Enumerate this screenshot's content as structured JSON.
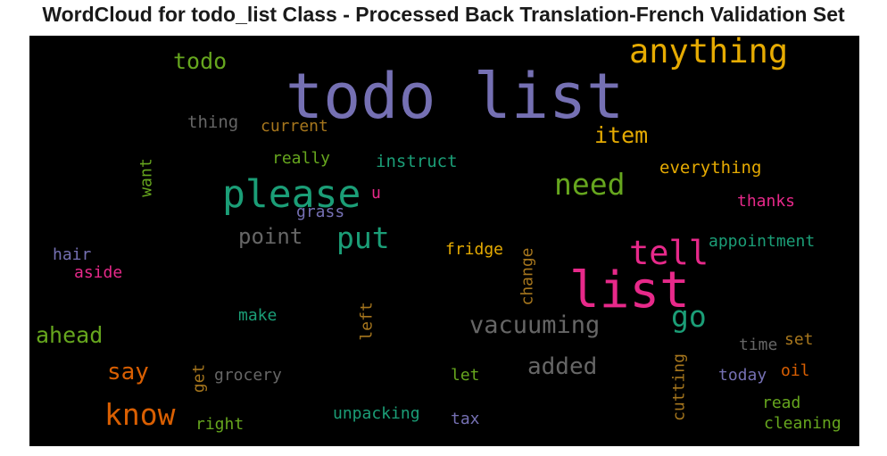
{
  "chart_data": {
    "type": "wordcloud",
    "title": "WordCloud for todo_list Class - Processed Back Translation-French Validation Set",
    "background": "#000000",
    "words": [
      {
        "text": "todo list",
        "color": "#7570b3"
      },
      {
        "text": "list",
        "color": "#e7298a"
      },
      {
        "text": "anything",
        "color": "#e6ab02"
      },
      {
        "text": "please",
        "color": "#1b9e77"
      },
      {
        "text": "know",
        "color": "#d95f02"
      },
      {
        "text": "need",
        "color": "#66a61e"
      },
      {
        "text": "tell",
        "color": "#e7298a"
      },
      {
        "text": "put",
        "color": "#1b9e77"
      },
      {
        "text": "vacuuming",
        "color": "#666666"
      },
      {
        "text": "go",
        "color": "#1b9e77"
      },
      {
        "text": "item",
        "color": "#e6ab02"
      },
      {
        "text": "point",
        "color": "#666666"
      },
      {
        "text": "ahead",
        "color": "#66a61e"
      },
      {
        "text": "added",
        "color": "#666666"
      },
      {
        "text": "say",
        "color": "#d95f02"
      },
      {
        "text": "todo",
        "color": "#66a61e"
      },
      {
        "text": "thing",
        "color": "#666666"
      },
      {
        "text": "current",
        "color": "#a6761d"
      },
      {
        "text": "really",
        "color": "#66a61e"
      },
      {
        "text": "instruct",
        "color": "#1b9e77"
      },
      {
        "text": "everything",
        "color": "#e6ab02"
      },
      {
        "text": "want",
        "color": "#66a61e"
      },
      {
        "text": "u",
        "color": "#e7298a"
      },
      {
        "text": "grass",
        "color": "#7570b3"
      },
      {
        "text": "thanks",
        "color": "#e7298a"
      },
      {
        "text": "appointment",
        "color": "#1b9e77"
      },
      {
        "text": "hair",
        "color": "#7570b3"
      },
      {
        "text": "aside",
        "color": "#e7298a"
      },
      {
        "text": "fridge",
        "color": "#e6ab02"
      },
      {
        "text": "change",
        "color": "#a6761d"
      },
      {
        "text": "make",
        "color": "#1b9e77"
      },
      {
        "text": "left",
        "color": "#a6761d"
      },
      {
        "text": "time",
        "color": "#666666"
      },
      {
        "text": "set",
        "color": "#a6761d"
      },
      {
        "text": "grocery",
        "color": "#666666"
      },
      {
        "text": "get",
        "color": "#a6761d"
      },
      {
        "text": "let",
        "color": "#66a61e"
      },
      {
        "text": "cutting",
        "color": "#a6761d"
      },
      {
        "text": "today",
        "color": "#7570b3"
      },
      {
        "text": "oil",
        "color": "#d95f02"
      },
      {
        "text": "unpacking",
        "color": "#1b9e77"
      },
      {
        "text": "right",
        "color": "#66a61e"
      },
      {
        "text": "tax",
        "color": "#7570b3"
      },
      {
        "text": "read",
        "color": "#66a61e"
      },
      {
        "text": "cleaning",
        "color": "#66a61e"
      }
    ]
  }
}
